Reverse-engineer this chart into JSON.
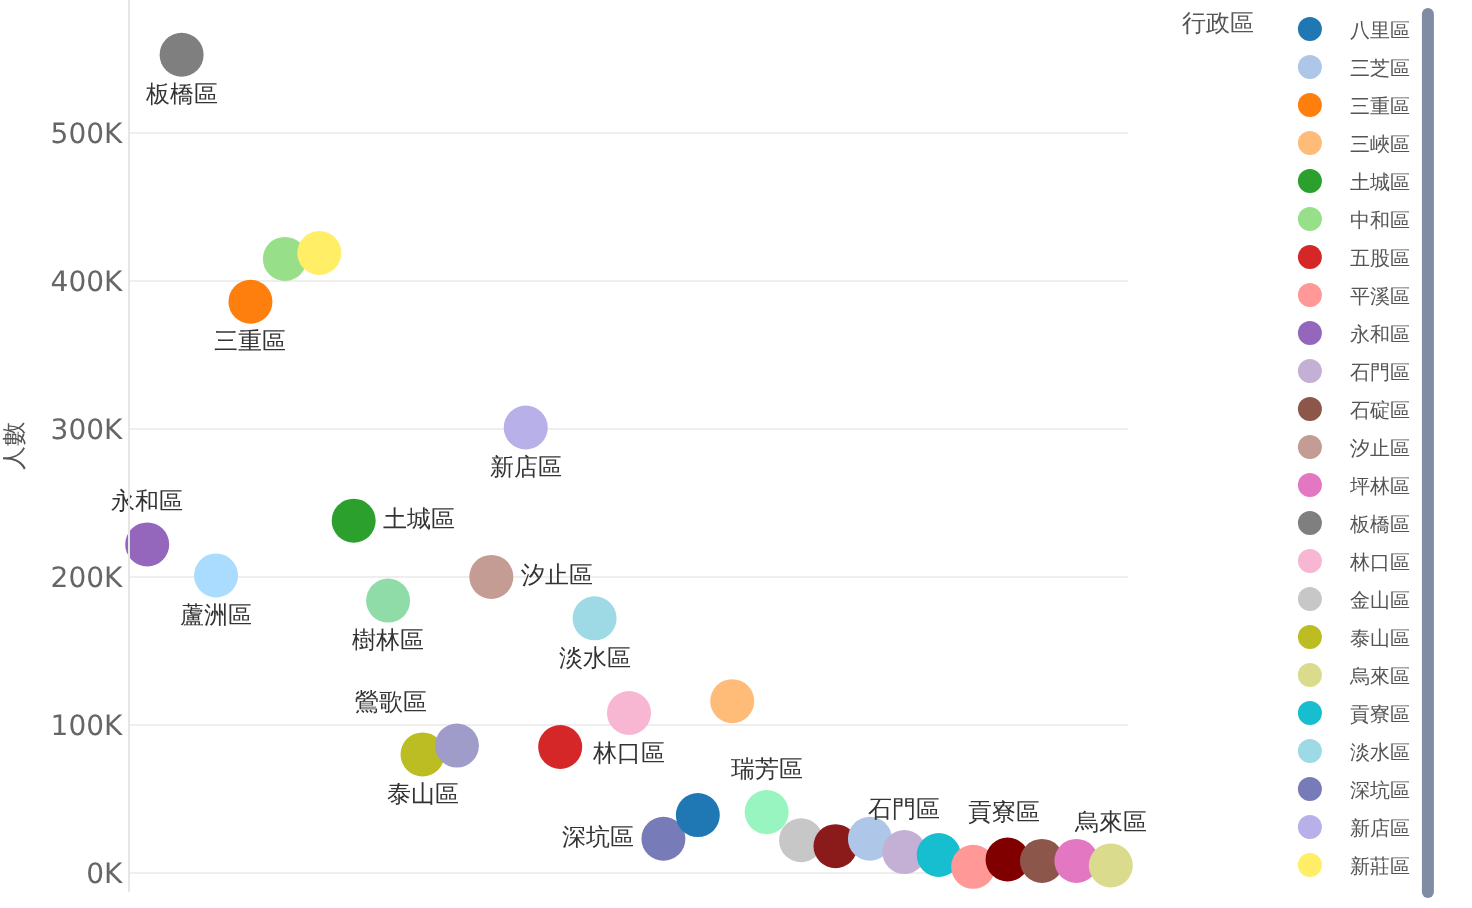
{
  "chart_data": {
    "type": "scatter",
    "ylabel": "人數",
    "legend_title": "行政區",
    "legend": "right",
    "grid": "y",
    "marker": "circle",
    "categories": [
      null,
      null,
      null,
      null,
      null,
      null,
      null,
      null,
      null,
      null,
      null,
      null,
      null,
      null,
      null,
      null,
      null,
      null,
      null,
      null,
      null,
      null,
      null,
      null,
      null,
      null,
      null,
      null,
      null
    ],
    "ylim": [
      -13000,
      590000
    ],
    "yticks": [
      {
        "value": 0,
        "label": "0K"
      },
      {
        "value": 100000,
        "label": "100K"
      },
      {
        "value": 200000,
        "label": "200K"
      },
      {
        "value": 300000,
        "label": "300K"
      },
      {
        "value": 400000,
        "label": "400K"
      },
      {
        "value": 500000,
        "label": "500K"
      }
    ],
    "series": [
      {
        "name": "永和區",
        "color": "#9467bd",
        "values": [
          222000,
          null,
          null,
          null,
          null,
          null,
          null,
          null,
          null,
          null,
          null,
          null,
          null,
          null,
          null,
          null,
          null,
          null,
          null,
          null,
          null,
          null,
          null,
          null,
          null,
          null,
          null,
          null,
          null
        ]
      },
      {
        "name": "板橋區",
        "color": "#7f7f7f",
        "values": [
          null,
          553000,
          null,
          null,
          null,
          null,
          null,
          null,
          null,
          null,
          null,
          null,
          null,
          null,
          null,
          null,
          null,
          null,
          null,
          null,
          null,
          null,
          null,
          null,
          null,
          null,
          null,
          null,
          null
        ]
      },
      {
        "name": "蘆洲區",
        "color": "#aadcff",
        "values": [
          null,
          null,
          201000,
          null,
          null,
          null,
          null,
          null,
          null,
          null,
          null,
          null,
          null,
          null,
          null,
          null,
          null,
          null,
          null,
          null,
          null,
          null,
          null,
          null,
          null,
          null,
          null,
          null,
          null
        ]
      },
      {
        "name": "三重區",
        "color": "#ff7f0e",
        "values": [
          null,
          null,
          null,
          386000,
          null,
          null,
          null,
          null,
          null,
          null,
          null,
          null,
          null,
          null,
          null,
          null,
          null,
          null,
          null,
          null,
          null,
          null,
          null,
          null,
          null,
          null,
          null,
          null,
          null
        ]
      },
      {
        "name": "中和區",
        "color": "#98df8a",
        "values": [
          null,
          null,
          null,
          null,
          415000,
          null,
          null,
          null,
          null,
          null,
          null,
          null,
          null,
          null,
          null,
          null,
          null,
          null,
          null,
          null,
          null,
          null,
          null,
          null,
          null,
          null,
          null,
          null,
          null
        ]
      },
      {
        "name": "新莊區",
        "color": "#ffee66",
        "values": [
          null,
          null,
          null,
          null,
          null,
          419000,
          null,
          null,
          null,
          null,
          null,
          null,
          null,
          null,
          null,
          null,
          null,
          null,
          null,
          null,
          null,
          null,
          null,
          null,
          null,
          null,
          null,
          null,
          null
        ]
      },
      {
        "name": "土城區",
        "color": "#2ca02c",
        "values": [
          null,
          null,
          null,
          null,
          null,
          null,
          238000,
          null,
          null,
          null,
          null,
          null,
          null,
          null,
          null,
          null,
          null,
          null,
          null,
          null,
          null,
          null,
          null,
          null,
          null,
          null,
          null,
          null,
          null
        ]
      },
      {
        "name": "樹林區",
        "color": "#90dca8",
        "values": [
          null,
          null,
          null,
          null,
          null,
          null,
          null,
          184000,
          null,
          null,
          null,
          null,
          null,
          null,
          null,
          null,
          null,
          null,
          null,
          null,
          null,
          null,
          null,
          null,
          null,
          null,
          null,
          null,
          null
        ]
      },
      {
        "name": "泰山區",
        "color": "#bcbd22",
        "values": [
          null,
          null,
          null,
          null,
          null,
          null,
          null,
          null,
          80000,
          null,
          null,
          null,
          null,
          null,
          null,
          null,
          null,
          null,
          null,
          null,
          null,
          null,
          null,
          null,
          null,
          null,
          null,
          null,
          null
        ]
      },
      {
        "name": "鶯歌區",
        "color": "#a09cc9",
        "values": [
          null,
          null,
          null,
          null,
          null,
          null,
          null,
          null,
          null,
          86000,
          null,
          null,
          null,
          null,
          null,
          null,
          null,
          null,
          null,
          null,
          null,
          null,
          null,
          null,
          null,
          null,
          null,
          null,
          null
        ]
      },
      {
        "name": "汐止區",
        "color": "#c49c94",
        "values": [
          null,
          null,
          null,
          null,
          null,
          null,
          null,
          null,
          null,
          null,
          200000,
          null,
          null,
          null,
          null,
          null,
          null,
          null,
          null,
          null,
          null,
          null,
          null,
          null,
          null,
          null,
          null,
          null,
          null
        ]
      },
      {
        "name": "新店區",
        "color": "#b8b0e8",
        "values": [
          null,
          null,
          null,
          null,
          null,
          null,
          null,
          null,
          null,
          null,
          null,
          301000,
          null,
          null,
          null,
          null,
          null,
          null,
          null,
          null,
          null,
          null,
          null,
          null,
          null,
          null,
          null,
          null,
          null
        ]
      },
      {
        "name": "五股區",
        "color": "#d62728",
        "values": [
          null,
          null,
          null,
          null,
          null,
          null,
          null,
          null,
          null,
          null,
          null,
          null,
          85000,
          null,
          null,
          null,
          null,
          null,
          null,
          null,
          null,
          null,
          null,
          null,
          null,
          null,
          null,
          null,
          null
        ]
      },
      {
        "name": "淡水區",
        "color": "#9edae5",
        "values": [
          null,
          null,
          null,
          null,
          null,
          null,
          null,
          null,
          null,
          null,
          null,
          null,
          null,
          172000,
          null,
          null,
          null,
          null,
          null,
          null,
          null,
          null,
          null,
          null,
          null,
          null,
          null,
          null,
          null
        ]
      },
      {
        "name": "林口區",
        "color": "#f7b6d2",
        "values": [
          null,
          null,
          null,
          null,
          null,
          null,
          null,
          null,
          null,
          null,
          null,
          null,
          null,
          null,
          108000,
          null,
          null,
          null,
          null,
          null,
          null,
          null,
          null,
          null,
          null,
          null,
          null,
          null,
          null
        ]
      },
      {
        "name": "深坑區",
        "color": "#777bb8",
        "values": [
          null,
          null,
          null,
          null,
          null,
          null,
          null,
          null,
          null,
          null,
          null,
          null,
          null,
          null,
          null,
          23000,
          null,
          null,
          null,
          null,
          null,
          null,
          null,
          null,
          null,
          null,
          null,
          null,
          null
        ]
      },
      {
        "name": "八里區",
        "color": "#1f77b4",
        "values": [
          null,
          null,
          null,
          null,
          null,
          null,
          null,
          null,
          null,
          null,
          null,
          null,
          null,
          null,
          null,
          null,
          39000,
          null,
          null,
          null,
          null,
          null,
          null,
          null,
          null,
          null,
          null,
          null,
          null
        ]
      },
      {
        "name": "三峽區",
        "color": "#ffbb78",
        "values": [
          null,
          null,
          null,
          null,
          null,
          null,
          null,
          null,
          null,
          null,
          null,
          null,
          null,
          null,
          null,
          null,
          null,
          116000,
          null,
          null,
          null,
          null,
          null,
          null,
          null,
          null,
          null,
          null,
          null
        ]
      },
      {
        "name": "瑞芳區",
        "color": "#98f5c0",
        "values": [
          null,
          null,
          null,
          null,
          null,
          null,
          null,
          null,
          null,
          null,
          null,
          null,
          null,
          null,
          null,
          null,
          null,
          null,
          41000,
          null,
          null,
          null,
          null,
          null,
          null,
          null,
          null,
          null,
          null
        ]
      },
      {
        "name": "金山區",
        "color": "#c7c7c7",
        "values": [
          null,
          null,
          null,
          null,
          null,
          null,
          null,
          null,
          null,
          null,
          null,
          null,
          null,
          null,
          null,
          null,
          null,
          null,
          null,
          22000,
          null,
          null,
          null,
          null,
          null,
          null,
          null,
          null,
          null
        ]
      },
      {
        "color": "#8b1a1a",
        "values": [
          null,
          null,
          null,
          null,
          null,
          null,
          null,
          null,
          null,
          null,
          null,
          null,
          null,
          null,
          null,
          null,
          null,
          null,
          null,
          null,
          18000,
          null,
          null,
          null,
          null,
          null,
          null,
          null,
          null
        ]
      },
      {
        "name": "三芝區",
        "color": "#aec7e8",
        "values": [
          null,
          null,
          null,
          null,
          null,
          null,
          null,
          null,
          null,
          null,
          null,
          null,
          null,
          null,
          null,
          null,
          null,
          null,
          null,
          null,
          null,
          23000,
          null,
          null,
          null,
          null,
          null,
          null,
          null
        ]
      },
      {
        "name": "石門區",
        "color": "#c5b0d5",
        "values": [
          null,
          null,
          null,
          null,
          null,
          null,
          null,
          null,
          null,
          null,
          null,
          null,
          null,
          null,
          null,
          null,
          null,
          null,
          null,
          null,
          null,
          null,
          14000,
          null,
          null,
          null,
          null,
          null,
          null
        ]
      },
      {
        "name": "貢寮區",
        "color": "#17becf",
        "values": [
          null,
          null,
          null,
          null,
          null,
          null,
          null,
          null,
          null,
          null,
          null,
          null,
          null,
          null,
          null,
          null,
          null,
          null,
          null,
          null,
          null,
          null,
          null,
          12000,
          null,
          null,
          null,
          null,
          null
        ]
      },
      {
        "name": "平溪區",
        "color": "#ff9896",
        "values": [
          null,
          null,
          null,
          null,
          null,
          null,
          null,
          null,
          null,
          null,
          null,
          null,
          null,
          null,
          null,
          null,
          null,
          null,
          null,
          null,
          null,
          null,
          null,
          null,
          4000,
          null,
          null,
          null,
          null
        ]
      },
      {
        "color": "#800000",
        "values": [
          null,
          null,
          null,
          null,
          null,
          null,
          null,
          null,
          null,
          null,
          null,
          null,
          null,
          null,
          null,
          null,
          null,
          null,
          null,
          null,
          null,
          null,
          null,
          null,
          null,
          9000,
          null,
          null,
          null
        ]
      },
      {
        "name": "石碇區",
        "color": "#8c564b",
        "values": [
          null,
          null,
          null,
          null,
          null,
          null,
          null,
          null,
          null,
          null,
          null,
          null,
          null,
          null,
          null,
          null,
          null,
          null,
          null,
          null,
          null,
          null,
          null,
          null,
          null,
          null,
          8000,
          null,
          null
        ]
      },
      {
        "name": "坪林區",
        "color": "#e377c2",
        "values": [
          null,
          null,
          null,
          null,
          null,
          null,
          null,
          null,
          null,
          null,
          null,
          null,
          null,
          null,
          null,
          null,
          null,
          null,
          null,
          null,
          null,
          null,
          null,
          null,
          null,
          null,
          null,
          8000,
          null
        ]
      },
      {
        "name": "烏來區",
        "color": "#dbdb8d",
        "values": [
          null,
          null,
          null,
          null,
          null,
          null,
          null,
          null,
          null,
          null,
          null,
          null,
          null,
          null,
          null,
          null,
          null,
          null,
          null,
          null,
          null,
          null,
          null,
          null,
          null,
          null,
          null,
          null,
          5000
        ]
      }
    ]
  }
}
